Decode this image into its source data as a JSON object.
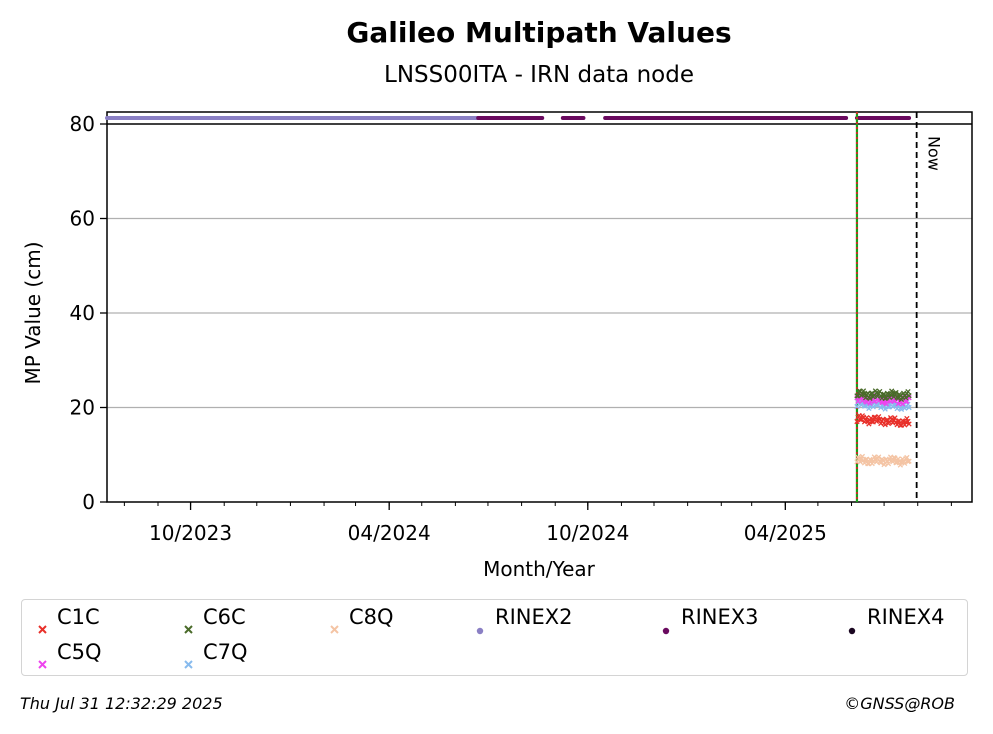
{
  "chart_data": {
    "type": "scatter",
    "title": "Galileo Multipath Values",
    "subtitle": "LNSS00ITA - IRN data node",
    "xlabel": "Month/Year",
    "ylabel": "MP Value (cm)",
    "xlim": [
      "2023-07-16",
      "2025-09-20"
    ],
    "ylim": [
      0,
      80
    ],
    "yticks": [
      0,
      20,
      40,
      60,
      80
    ],
    "xticks": [
      {
        "date": "2023-10-01",
        "label": "10/2023"
      },
      {
        "date": "2024-04-01",
        "label": "04/2024"
      },
      {
        "date": "2024-10-01",
        "label": "10/2024"
      },
      {
        "date": "2025-04-01",
        "label": "04/2025"
      }
    ],
    "grid": "horizontal",
    "legend_placement": "bottom",
    "vlines": [
      {
        "date": "2025-06-06",
        "color": "#1a9e1a",
        "style": "solid"
      },
      {
        "date": "2025-06-06",
        "color": "#d62728",
        "style": "dotted"
      },
      {
        "date": "2025-07-31",
        "color": "#000000",
        "style": "dashed",
        "label": "Now"
      }
    ],
    "file_format_band": [
      {
        "name": "RINEX2",
        "start": "2023-07-16",
        "end": "2024-06-22",
        "color": "#8a7fc4"
      },
      {
        "name": "RINEX3",
        "start": "2024-06-22",
        "end": "2024-08-20",
        "color": "#6a0a5f"
      },
      {
        "name": "RINEX3",
        "start": "2024-09-08",
        "end": "2024-09-27",
        "color": "#6a0a5f"
      },
      {
        "name": "RINEX3",
        "start": "2024-10-17",
        "end": "2025-05-27",
        "color": "#6a0a5f"
      },
      {
        "name": "RINEX3",
        "start": "2025-06-06",
        "end": "2025-07-24",
        "color": "#6a0a5f"
      }
    ],
    "series": [
      {
        "name": "C1C",
        "color": "#e8302a",
        "marker": "x",
        "start": "2025-06-06",
        "end": "2025-07-24",
        "y_start": 17.6,
        "y_end": 16.8
      },
      {
        "name": "C6C",
        "color": "#4a6b2a",
        "marker": "x",
        "start": "2025-06-06",
        "end": "2025-07-24",
        "y_start": 22.8,
        "y_end": 22.5
      },
      {
        "name": "C8Q",
        "color": "#f4c4a4",
        "marker": "x",
        "start": "2025-06-06",
        "end": "2025-07-24",
        "y_start": 8.8,
        "y_end": 8.7
      },
      {
        "name": "C5Q",
        "color": "#ee44ee",
        "marker": "x",
        "start": "2025-06-06",
        "end": "2025-07-24",
        "y_start": 21.8,
        "y_end": 21.5
      },
      {
        "name": "C7Q",
        "color": "#88bbee",
        "marker": "x",
        "start": "2025-06-06",
        "end": "2025-07-24",
        "y_start": 20.8,
        "y_end": 20.3
      }
    ],
    "legend": [
      {
        "label": "C1C",
        "color": "#e8302a",
        "marker": "x"
      },
      {
        "label": "C6C",
        "color": "#4a6b2a",
        "marker": "x"
      },
      {
        "label": "C8Q",
        "color": "#f4c4a4",
        "marker": "x"
      },
      {
        "label": "RINEX2",
        "color": "#8a7fc4",
        "marker": "dot"
      },
      {
        "label": "RINEX3",
        "color": "#6a0a5f",
        "marker": "dot"
      },
      {
        "label": "RINEX4",
        "color": "#1a0620",
        "marker": "dot"
      },
      {
        "label": "C5Q",
        "color": "#ee44ee",
        "marker": "x"
      },
      {
        "label": "C7Q",
        "color": "#88bbee",
        "marker": "x"
      }
    ]
  },
  "footer": {
    "timestamp": "Thu Jul 31 12:32:29 2025",
    "credit": "©GNSS@ROB"
  }
}
